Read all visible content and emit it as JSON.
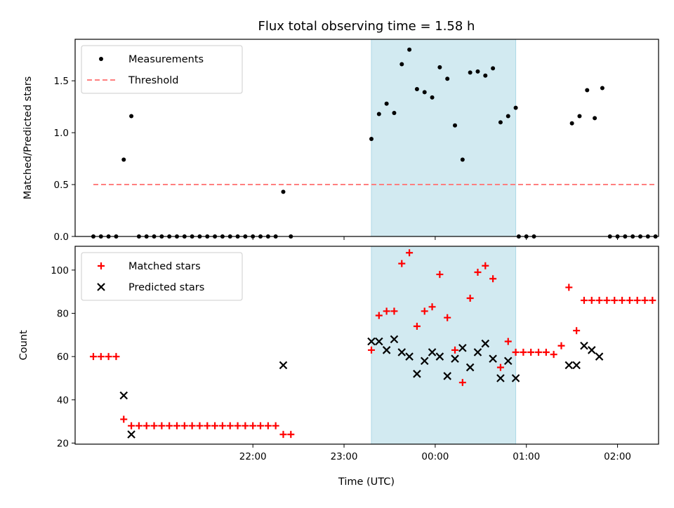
{
  "chart_data": {
    "type": "scatter",
    "title": "Flux total observing time = 1.58 h",
    "xlabel": "Time (UTC)",
    "xticks": [
      "22:00",
      "23:00",
      "00:00",
      "01:00",
      "02:00"
    ],
    "x_range_minutes": [
      -237,
      147
    ],
    "highlight_span_minutes": [
      -42,
      53
    ],
    "colors": {
      "span": "#add8e6",
      "threshold": "#ff7f7f",
      "matched": "#ff0000",
      "predicted": "#000000",
      "measurements": "#000000"
    },
    "panels": [
      {
        "ylabel": "Matched/Predicted stars",
        "ylim": [
          0,
          1.9
        ],
        "yticks": [
          "0.0",
          "0.5",
          "1.0",
          "1.5"
        ],
        "legend_position": "upper left",
        "series": [
          {
            "name": "Measurements",
            "marker": "dot",
            "points": [
              [
                -225,
                0
              ],
              [
                -220,
                0
              ],
              [
                -215,
                0
              ],
              [
                -210,
                0
              ],
              [
                -205,
                0.74
              ],
              [
                -200,
                1.16
              ],
              [
                -195,
                0
              ],
              [
                -190,
                0
              ],
              [
                -185,
                0
              ],
              [
                -180,
                0
              ],
              [
                -175,
                0
              ],
              [
                -170,
                0
              ],
              [
                -165,
                0
              ],
              [
                -160,
                0
              ],
              [
                -155,
                0
              ],
              [
                -150,
                0
              ],
              [
                -145,
                0
              ],
              [
                -140,
                0
              ],
              [
                -135,
                0
              ],
              [
                -130,
                0
              ],
              [
                -125,
                0
              ],
              [
                -120,
                0
              ],
              [
                -115,
                0
              ],
              [
                -110,
                0
              ],
              [
                -105,
                0
              ],
              [
                -100,
                0.43
              ],
              [
                -95,
                0
              ],
              [
                -42,
                0.94
              ],
              [
                -37,
                1.18
              ],
              [
                -32,
                1.28
              ],
              [
                -27,
                1.19
              ],
              [
                -22,
                1.66
              ],
              [
                -17,
                1.8
              ],
              [
                -12,
                1.42
              ],
              [
                -7,
                1.39
              ],
              [
                -2,
                1.34
              ],
              [
                3,
                1.63
              ],
              [
                8,
                1.52
              ],
              [
                13,
                1.07
              ],
              [
                18,
                0.74
              ],
              [
                23,
                1.58
              ],
              [
                28,
                1.59
              ],
              [
                33,
                1.55
              ],
              [
                38,
                1.62
              ],
              [
                43,
                1.1
              ],
              [
                48,
                1.16
              ],
              [
                53,
                1.24
              ],
              [
                55,
                0
              ],
              [
                60,
                0
              ],
              [
                65,
                0
              ],
              [
                90,
                1.09
              ],
              [
                95,
                1.16
              ],
              [
                100,
                1.41
              ],
              [
                105,
                1.14
              ],
              [
                110,
                1.43
              ],
              [
                115,
                0
              ],
              [
                120,
                0
              ],
              [
                125,
                0
              ],
              [
                130,
                0
              ],
              [
                135,
                0
              ],
              [
                140,
                0
              ],
              [
                145,
                0
              ]
            ]
          },
          {
            "name": "Threshold",
            "marker": "dashed-line",
            "points": [
              [
                -225,
                0.5
              ],
              [
                145,
                0.5
              ]
            ]
          }
        ]
      },
      {
        "ylabel": "Count",
        "ylim": [
          19.5,
          111
        ],
        "yticks": [
          "20",
          "40",
          "60",
          "80",
          "100"
        ],
        "legend_position": "upper left",
        "series": [
          {
            "name": "Matched stars",
            "marker": "plus",
            "points": [
              [
                -225,
                60
              ],
              [
                -220,
                60
              ],
              [
                -215,
                60
              ],
              [
                -210,
                60
              ],
              [
                -205,
                31
              ],
              [
                -200,
                28
              ],
              [
                -195,
                28
              ],
              [
                -190,
                28
              ],
              [
                -185,
                28
              ],
              [
                -180,
                28
              ],
              [
                -175,
                28
              ],
              [
                -170,
                28
              ],
              [
                -165,
                28
              ],
              [
                -160,
                28
              ],
              [
                -155,
                28
              ],
              [
                -150,
                28
              ],
              [
                -145,
                28
              ],
              [
                -140,
                28
              ],
              [
                -135,
                28
              ],
              [
                -130,
                28
              ],
              [
                -125,
                28
              ],
              [
                -120,
                28
              ],
              [
                -115,
                28
              ],
              [
                -110,
                28
              ],
              [
                -105,
                28
              ],
              [
                -100,
                24
              ],
              [
                -95,
                24
              ],
              [
                -42,
                63
              ],
              [
                -37,
                79
              ],
              [
                -32,
                81
              ],
              [
                -27,
                81
              ],
              [
                -22,
                103
              ],
              [
                -17,
                108
              ],
              [
                -12,
                74
              ],
              [
                -7,
                81
              ],
              [
                -2,
                83
              ],
              [
                3,
                98
              ],
              [
                8,
                78
              ],
              [
                13,
                63
              ],
              [
                18,
                48
              ],
              [
                23,
                87
              ],
              [
                28,
                99
              ],
              [
                33,
                102
              ],
              [
                38,
                96
              ],
              [
                43,
                55
              ],
              [
                48,
                67
              ],
              [
                53,
                62
              ],
              [
                58,
                62
              ],
              [
                63,
                62
              ],
              [
                68,
                62
              ],
              [
                73,
                62
              ],
              [
                78,
                61
              ],
              [
                83,
                65
              ],
              [
                88,
                92
              ],
              [
                93,
                72
              ],
              [
                98,
                86
              ],
              [
                103,
                86
              ],
              [
                108,
                86
              ],
              [
                113,
                86
              ],
              [
                118,
                86
              ],
              [
                123,
                86
              ],
              [
                128,
                86
              ],
              [
                133,
                86
              ],
              [
                138,
                86
              ],
              [
                143,
                86
              ]
            ]
          },
          {
            "name": "Predicted stars",
            "marker": "x",
            "points": [
              [
                -205,
                42
              ],
              [
                -200,
                24
              ],
              [
                -100,
                56
              ],
              [
                -42,
                67
              ],
              [
                -37,
                67
              ],
              [
                -32,
                63
              ],
              [
                -27,
                68
              ],
              [
                -22,
                62
              ],
              [
                -17,
                60
              ],
              [
                -12,
                52
              ],
              [
                -7,
                58
              ],
              [
                -2,
                62
              ],
              [
                3,
                60
              ],
              [
                8,
                51
              ],
              [
                13,
                59
              ],
              [
                18,
                64
              ],
              [
                23,
                55
              ],
              [
                28,
                62
              ],
              [
                33,
                66
              ],
              [
                38,
                59
              ],
              [
                43,
                50
              ],
              [
                48,
                58
              ],
              [
                53,
                50
              ],
              [
                88,
                56
              ],
              [
                93,
                56
              ],
              [
                98,
                65
              ],
              [
                103,
                63
              ],
              [
                108,
                60
              ]
            ]
          }
        ]
      }
    ]
  }
}
